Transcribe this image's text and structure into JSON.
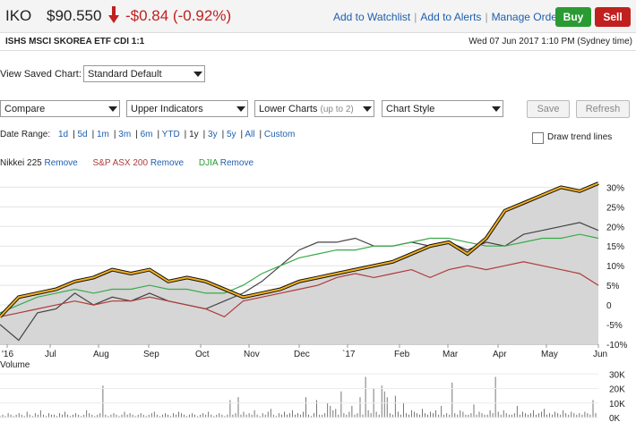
{
  "header": {
    "ticker": "IKO",
    "price": "$90.550",
    "change": "-$0.84 (-0.92%)",
    "links": [
      "Add to Watchlist",
      "Add to Alerts",
      "Manage Orders"
    ],
    "buy_label": "Buy",
    "sell_label": "Sell",
    "security_name": "ISHS MSCI SKOREA ETF CDI 1:1",
    "datetime": "Wed 07 Jun 2017 1:10 PM (Sydney time)"
  },
  "saved_chart": {
    "label": "View Saved Chart:",
    "value": "Standard Default"
  },
  "toolbar": {
    "compare": "Compare",
    "upper_indicators": "Upper Indicators",
    "lower_charts": "Lower Charts",
    "lower_charts_note": "(up to 2)",
    "chart_style": "Chart Style",
    "save_label": "Save",
    "refresh_label": "Refresh"
  },
  "date_range": {
    "label": "Date Range:",
    "options": [
      "1d",
      "5d",
      "1m",
      "3m",
      "6m",
      "YTD",
      "1y",
      "3y",
      "5y",
      "All",
      "Custom"
    ],
    "active": "1y"
  },
  "trend_lines_label": "Draw trend lines",
  "comparisons": [
    {
      "name": "Nikkei 225",
      "remove": "Remove",
      "color": "#222222"
    },
    {
      "name": "S&P ASX 200",
      "remove": "Remove",
      "color": "#b03a3a"
    },
    {
      "name": "DJIA",
      "remove": "Remove",
      "color": "#2a9a33"
    }
  ],
  "colors": {
    "link": "#1f5fae",
    "down": "#c0211f",
    "main_series": "#f2b01e",
    "buy": "#2a9a33",
    "sell": "#c0211f"
  },
  "chart_data": {
    "type": "line",
    "x_labels": [
      "'16",
      "Jul",
      "Aug",
      "Sep",
      "Oct",
      "Nov",
      "Dec",
      "`17",
      "Feb",
      "Mar",
      "Apr",
      "May",
      "Jun"
    ],
    "y_ticks": [
      "30%",
      "25%",
      "20%",
      "15%",
      "10%",
      "5%",
      "0",
      "-5%",
      "-10%"
    ],
    "ylim": [
      -10,
      31
    ],
    "series": [
      {
        "name": "IKO",
        "color": "#f2b01e",
        "values": [
          -3,
          2,
          3,
          4,
          6,
          7,
          9,
          8,
          9,
          6,
          7,
          6,
          4,
          2,
          3,
          4,
          6,
          7,
          8,
          9,
          10,
          11,
          13,
          15,
          16,
          13,
          17,
          24,
          26,
          28,
          30,
          29,
          31
        ]
      },
      {
        "name": "Nikkei 225",
        "color": "#444444",
        "values": [
          -5,
          -9,
          -2,
          -1,
          3,
          0,
          2,
          1,
          3,
          1,
          0,
          -1,
          1,
          3,
          6,
          10,
          14,
          16,
          16,
          17,
          15,
          15,
          16,
          15,
          16,
          14,
          16,
          15,
          18,
          19,
          20,
          21,
          19
        ]
      },
      {
        "name": "S&P ASX 200",
        "color": "#b03a3a",
        "values": [
          -3,
          -2,
          -1,
          0,
          1,
          0,
          1,
          1,
          2,
          1,
          0,
          -1,
          -3,
          1,
          2,
          3,
          4,
          5,
          7,
          8,
          7,
          8,
          9,
          7,
          9,
          10,
          9,
          10,
          11,
          10,
          9,
          8,
          5
        ]
      },
      {
        "name": "DJIA",
        "color": "#3aaa4a",
        "values": [
          -2,
          0,
          2,
          3,
          4,
          3,
          4,
          4,
          5,
          4,
          4,
          3,
          3,
          5,
          8,
          10,
          12,
          13,
          14,
          14,
          15,
          15,
          16,
          17,
          17,
          16,
          15,
          15,
          16,
          17,
          17,
          18,
          17
        ]
      }
    ],
    "volume": {
      "label": "Volume",
      "ticks": [
        "30K",
        "20K",
        "10K",
        "0K"
      ],
      "ylim": [
        0,
        32
      ],
      "values": [
        1,
        2,
        1,
        3,
        2,
        1,
        2,
        3,
        2,
        1,
        4,
        2,
        1,
        3,
        2,
        5,
        2,
        1,
        3,
        2,
        2,
        1,
        3,
        2,
        4,
        2,
        1,
        2,
        3,
        2,
        1,
        2,
        5,
        3,
        2,
        1,
        2,
        3,
        22,
        2,
        1,
        2,
        3,
        2,
        1,
        2,
        4,
        2,
        3,
        2,
        1,
        2,
        3,
        2,
        1,
        2,
        3,
        4,
        2,
        1,
        2,
        3,
        2,
        1,
        3,
        2,
        4,
        3,
        2,
        1,
        2,
        3,
        2,
        1,
        2,
        3,
        2,
        4,
        2,
        1,
        2,
        3,
        2,
        1,
        2,
        12,
        2,
        3,
        14,
        2,
        4,
        2,
        3,
        2,
        5,
        2,
        1,
        3,
        2,
        4,
        6,
        2,
        1,
        3,
        2,
        4,
        2,
        3,
        5,
        2,
        3,
        2,
        4,
        14,
        2,
        1,
        3,
        12,
        2,
        2,
        3,
        10,
        8,
        5,
        6,
        2,
        18,
        3,
        2,
        4,
        8,
        2,
        3,
        14,
        2,
        28,
        5,
        3,
        20,
        4,
        2,
        22,
        18,
        14,
        3,
        2,
        15,
        4,
        2,
        10,
        3,
        2,
        5,
        4,
        3,
        2,
        6,
        3,
        2,
        4,
        3,
        5,
        2,
        8,
        2,
        3,
        2,
        24,
        3,
        2,
        5,
        4,
        2,
        2,
        3,
        9,
        2,
        4,
        3,
        2,
        2,
        5,
        3,
        28,
        4,
        2,
        5,
        3,
        2,
        2,
        3,
        8,
        2,
        4,
        3,
        2,
        3,
        5,
        2,
        3,
        4,
        6,
        2,
        3,
        2,
        4,
        3,
        2,
        5,
        3,
        2,
        4,
        3,
        2,
        3,
        2,
        4,
        3,
        2,
        12,
        3
      ]
    }
  }
}
